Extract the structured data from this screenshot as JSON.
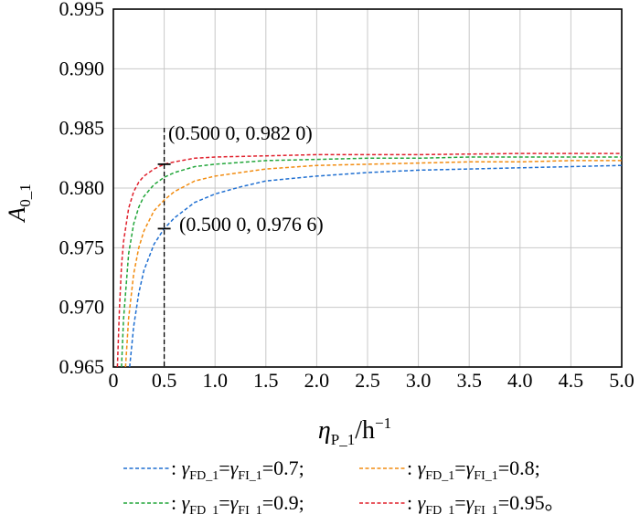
{
  "chart_data": {
    "type": "line",
    "xlabel": {
      "main": "η",
      "sub": "P_1",
      "unit": "/h",
      "unit_sup": "−1"
    },
    "ylabel": {
      "main": "A",
      "sub": "0_1"
    },
    "xlim": [
      0,
      5
    ],
    "ylim": [
      0.965,
      0.995
    ],
    "x_ticks": [
      "0",
      "0.5",
      "1.0",
      "1.5",
      "2.0",
      "2.5",
      "3.0",
      "3.5",
      "4.0",
      "4.5",
      "5.0"
    ],
    "y_ticks": [
      "0.965",
      "0.970",
      "0.975",
      "0.980",
      "0.985",
      "0.990",
      "0.995"
    ],
    "grid": true,
    "legend_position": "bottom",
    "series": [
      {
        "legend": {
          "sep": " : ",
          "sym1": "γ",
          "sub1": "FD_1",
          "eq": "=",
          "sym2": "γ",
          "sub2": "FI_1",
          "value": "=0.7;"
        },
        "color": "#1f6fd1",
        "x": [
          0.16,
          0.2,
          0.25,
          0.3,
          0.4,
          0.5,
          0.6,
          0.8,
          1.0,
          1.25,
          1.5,
          2.0,
          2.5,
          3.0,
          3.5,
          4.0,
          4.5,
          5.0
        ],
        "y": [
          0.965,
          0.9684,
          0.9712,
          0.9731,
          0.9753,
          0.9766,
          0.9775,
          0.9788,
          0.9795,
          0.9801,
          0.9806,
          0.981,
          0.9813,
          0.9815,
          0.9816,
          0.9817,
          0.9818,
          0.9819
        ]
      },
      {
        "legend": {
          "sep": " : ",
          "sym1": "γ",
          "sub1": "FD_1",
          "eq": "=",
          "sym2": "γ",
          "sub2": "FI_1",
          "value": "=0.8;"
        },
        "color": "#f28c10",
        "x": [
          0.12,
          0.15,
          0.2,
          0.25,
          0.3,
          0.4,
          0.5,
          0.6,
          0.8,
          1.0,
          1.5,
          2.0,
          2.5,
          3.0,
          3.5,
          4.0,
          4.5,
          5.0
        ],
        "y": [
          0.965,
          0.9691,
          0.9728,
          0.975,
          0.9764,
          0.9781,
          0.979,
          0.9797,
          0.9806,
          0.981,
          0.9816,
          0.9819,
          0.982,
          0.9821,
          0.9822,
          0.9822,
          0.9823,
          0.9823
        ]
      },
      {
        "legend": {
          "sep": " : ",
          "sym1": "γ",
          "sub1": "FD_1",
          "eq": "=",
          "sym2": "γ",
          "sub2": "FI_1",
          "value": "=0.9;"
        },
        "color": "#22a63a",
        "x": [
          0.08,
          0.1,
          0.15,
          0.2,
          0.25,
          0.3,
          0.4,
          0.5,
          0.6,
          0.8,
          1.0,
          1.5,
          2.0,
          2.5,
          3.0,
          3.5,
          4.0,
          5.0
        ],
        "y": [
          0.965,
          0.969,
          0.9745,
          0.977,
          0.9784,
          0.9793,
          0.9803,
          0.9809,
          0.9813,
          0.9818,
          0.982,
          0.9823,
          0.9824,
          0.9825,
          0.9825,
          0.9826,
          0.9826,
          0.9826
        ]
      },
      {
        "legend": {
          "sep": " : ",
          "sym1": "γ",
          "sub1": "FD_1",
          "eq": "=",
          "sym2": "γ",
          "sub2": "FI_1",
          "value": "=0.95。"
        },
        "color": "#e0202c",
        "x": [
          0.04,
          0.06,
          0.08,
          0.1,
          0.15,
          0.2,
          0.25,
          0.3,
          0.4,
          0.5,
          0.6,
          0.8,
          1.0,
          1.5,
          2.0,
          3.0,
          4.0,
          5.0
        ],
        "y": [
          0.965,
          0.97,
          0.9735,
          0.9755,
          0.9783,
          0.9797,
          0.9805,
          0.981,
          0.9816,
          0.982,
          0.9822,
          0.9825,
          0.9826,
          0.9827,
          0.9828,
          0.9828,
          0.9829,
          0.9829
        ]
      }
    ],
    "annotations": [
      {
        "text": "(0.500 0, 0.982 0)",
        "x": 0.5,
        "y": 0.982
      },
      {
        "text": "(0.500 0, 0.976 6)",
        "x": 0.5,
        "y": 0.9766
      }
    ],
    "reference_line": {
      "x": 0.5
    }
  }
}
